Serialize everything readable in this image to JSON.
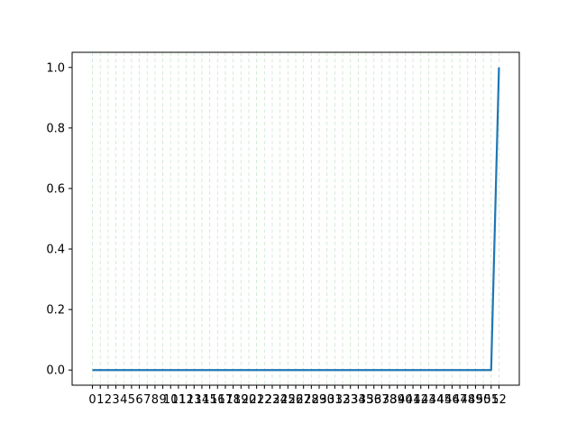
{
  "chart_data": {
    "type": "line",
    "title": "",
    "xlabel": "",
    "ylabel": "",
    "x": [
      0,
      1,
      2,
      3,
      4,
      5,
      6,
      7,
      8,
      9,
      10,
      11,
      12,
      13,
      14,
      15,
      16,
      17,
      18,
      19,
      20,
      21,
      22,
      23,
      24,
      25,
      26,
      27,
      28,
      29,
      30,
      31,
      32,
      33,
      34,
      35,
      36,
      37,
      38,
      39,
      40,
      41,
      42,
      43,
      44,
      45,
      46,
      47,
      48,
      49,
      50,
      51,
      52
    ],
    "series": [
      {
        "values": [
          0,
          0,
          0,
          0,
          0,
          0,
          0,
          0,
          0,
          0,
          0,
          0,
          0,
          0,
          0,
          0,
          0,
          0,
          0,
          0,
          0,
          0,
          0,
          0,
          0,
          0,
          0,
          0,
          0,
          0,
          0,
          0,
          0,
          0,
          0,
          0,
          0,
          0,
          0,
          0,
          0,
          0,
          0,
          0,
          0,
          0,
          0,
          0,
          0,
          0,
          0,
          0,
          1.0
        ],
        "color": "#1f77b4"
      }
    ],
    "xlim": [
      -2.6,
      54.6
    ],
    "ylim": [
      -0.05,
      1.05
    ],
    "xticks": [
      0,
      1,
      2,
      3,
      4,
      5,
      6,
      7,
      8,
      9,
      10,
      11,
      12,
      13,
      14,
      15,
      16,
      17,
      18,
      19,
      20,
      21,
      22,
      23,
      24,
      25,
      26,
      27,
      28,
      29,
      30,
      31,
      32,
      33,
      34,
      35,
      36,
      37,
      38,
      39,
      40,
      41,
      42,
      43,
      44,
      45,
      46,
      47,
      48,
      49,
      50,
      51,
      52
    ],
    "xtick_labels": [
      "0",
      "1",
      "2",
      "3",
      "4",
      "5",
      "6",
      "7",
      "8",
      "9",
      "10",
      "11",
      "12",
      "13",
      "14",
      "15",
      "16",
      "17",
      "18",
      "19",
      "20",
      "21",
      "22",
      "23",
      "24",
      "25",
      "26",
      "27",
      "28",
      "29",
      "30",
      "31",
      "32",
      "33",
      "34",
      "35",
      "36",
      "37",
      "38",
      "39",
      "40",
      "41",
      "42",
      "43",
      "44",
      "45",
      "46",
      "47",
      "48",
      "49",
      "50",
      "51",
      "52"
    ],
    "yticks": [
      0.0,
      0.2,
      0.4,
      0.6,
      0.8,
      1.0
    ],
    "ytick_labels": [
      "0.0",
      "0.2",
      "0.4",
      "0.6",
      "0.8",
      "1.0"
    ],
    "grid": "vertical dashed",
    "grid_color": "#2ca02c",
    "legend": "none"
  }
}
